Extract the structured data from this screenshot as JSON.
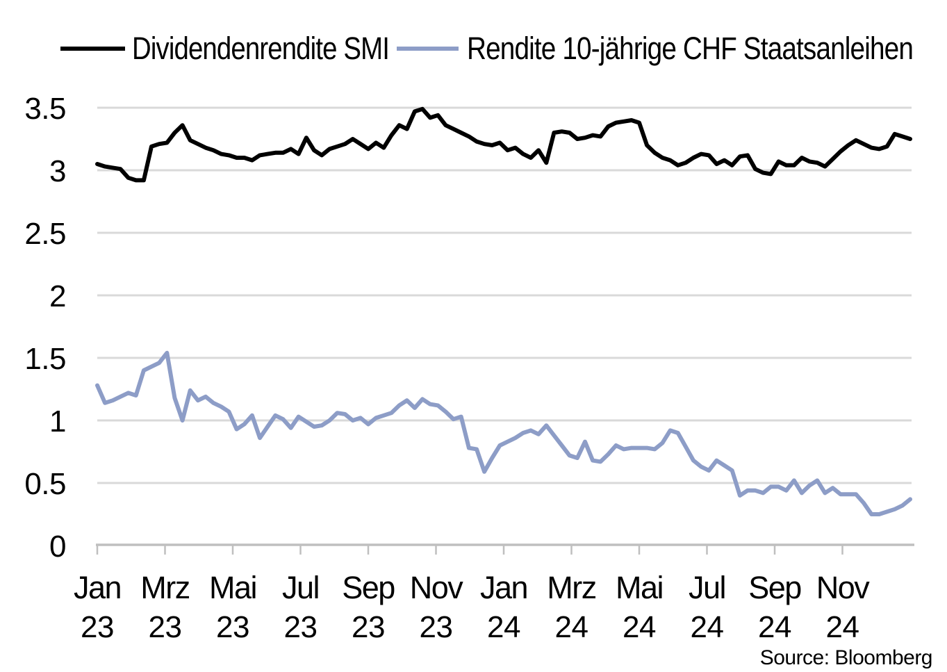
{
  "source_label": "Source: Bloomberg",
  "colors": {
    "series1": "#000000",
    "series2": "#8D9DC7",
    "gridline": "#D9D9D9",
    "axis": "#BFBFBF",
    "text": "#000000"
  },
  "chart_data": {
    "type": "line",
    "title": "",
    "legend_position": "top",
    "grid": true,
    "ylim": [
      0,
      3.5
    ],
    "y_tick_labels": [
      "0",
      "0.5",
      "1",
      "1.5",
      "2",
      "2.5",
      "3",
      "3.5"
    ],
    "x_tick_labels": [
      "Jan 23",
      "Mrz 23",
      "Mai 23",
      "Jul 23",
      "Sep 23",
      "Nov 23",
      "Jan 24",
      "Mrz 24",
      "Mai 24",
      "Jul 24",
      "Sep 24",
      "Nov 24"
    ],
    "series": [
      {
        "name": "Dividendenrendite SMI",
        "color": "#000000",
        "values": [
          3.05,
          3.03,
          3.02,
          3.01,
          2.94,
          2.92,
          2.92,
          3.19,
          3.21,
          3.22,
          3.3,
          3.36,
          3.24,
          3.21,
          3.18,
          3.16,
          3.13,
          3.12,
          3.1,
          3.1,
          3.08,
          3.12,
          3.13,
          3.14,
          3.14,
          3.17,
          3.13,
          3.26,
          3.16,
          3.12,
          3.17,
          3.19,
          3.21,
          3.25,
          3.21,
          3.17,
          3.22,
          3.18,
          3.28,
          3.36,
          3.33,
          3.47,
          3.49,
          3.42,
          3.44,
          3.36,
          3.33,
          3.3,
          3.27,
          3.23,
          3.21,
          3.2,
          3.22,
          3.16,
          3.18,
          3.13,
          3.1,
          3.16,
          3.06,
          3.3,
          3.31,
          3.3,
          3.25,
          3.26,
          3.28,
          3.27,
          3.35,
          3.38,
          3.39,
          3.4,
          3.38,
          3.2,
          3.14,
          3.1,
          3.08,
          3.04,
          3.06,
          3.1,
          3.13,
          3.12,
          3.05,
          3.08,
          3.04,
          3.11,
          3.12,
          3.01,
          2.98,
          2.97,
          3.07,
          3.04,
          3.04,
          3.1,
          3.07,
          3.06,
          3.03,
          3.09,
          3.15,
          3.2,
          3.24,
          3.21,
          3.18,
          3.17,
          3.19,
          3.29,
          3.27,
          3.25
        ]
      },
      {
        "name": "Rendite 10-jährige CHF Staatsanleihen",
        "color": "#8D9DC7",
        "values": [
          1.28,
          1.14,
          1.16,
          1.19,
          1.22,
          1.2,
          1.4,
          1.43,
          1.46,
          1.54,
          1.18,
          1.0,
          1.24,
          1.16,
          1.19,
          1.14,
          1.11,
          1.07,
          0.93,
          0.97,
          1.04,
          0.86,
          0.95,
          1.04,
          1.01,
          0.94,
          1.03,
          0.99,
          0.95,
          0.96,
          1.0,
          1.06,
          1.05,
          1.0,
          1.02,
          0.97,
          1.02,
          1.04,
          1.06,
          1.12,
          1.16,
          1.1,
          1.17,
          1.13,
          1.12,
          1.07,
          1.01,
          1.03,
          0.78,
          0.77,
          0.59,
          0.7,
          0.8,
          0.83,
          0.86,
          0.9,
          0.92,
          0.89,
          0.96,
          0.88,
          0.8,
          0.72,
          0.7,
          0.83,
          0.68,
          0.67,
          0.73,
          0.8,
          0.77,
          0.78,
          0.78,
          0.78,
          0.77,
          0.82,
          0.92,
          0.9,
          0.79,
          0.68,
          0.63,
          0.6,
          0.68,
          0.64,
          0.6,
          0.4,
          0.44,
          0.44,
          0.42,
          0.47,
          0.47,
          0.44,
          0.52,
          0.42,
          0.48,
          0.52,
          0.42,
          0.46,
          0.41,
          0.41,
          0.41,
          0.34,
          0.25,
          0.25,
          0.27,
          0.29,
          0.32,
          0.37
        ]
      }
    ]
  }
}
